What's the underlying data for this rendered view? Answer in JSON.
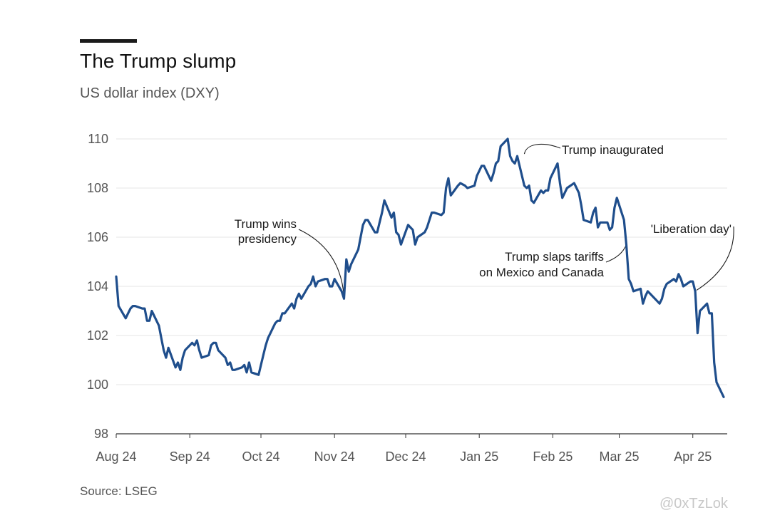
{
  "header": {
    "title": "The Trump slump",
    "subtitle": "US dollar index (DXY)"
  },
  "footer": {
    "source": "Source: LSEG",
    "watermark": "@0xTzLok"
  },
  "colors": {
    "line": "#1f4e8c",
    "grid": "#e6e6e6",
    "axis": "#333333"
  },
  "chart_data": {
    "type": "line",
    "title": "The Trump slump",
    "subtitle": "US dollar index (DXY)",
    "ylim": [
      98,
      110
    ],
    "y_ticks": [
      98,
      100,
      102,
      104,
      106,
      108,
      110
    ],
    "x_ticks": [
      {
        "label": "Aug 24",
        "date": "2024-08-01"
      },
      {
        "label": "Sep 24",
        "date": "2024-09-01"
      },
      {
        "label": "Oct 24",
        "date": "2024-10-01"
      },
      {
        "label": "Nov 24",
        "date": "2024-11-01"
      },
      {
        "label": "Dec 24",
        "date": "2024-12-01"
      },
      {
        "label": "Jan 25",
        "date": "2025-01-01"
      },
      {
        "label": "Feb 25",
        "date": "2025-02-01"
      },
      {
        "label": "Mar 25",
        "date": "2025-03-01"
      },
      {
        "label": "Apr 25",
        "date": "2025-04-01"
      }
    ],
    "grid": true,
    "series": [
      {
        "values": [
          [
            "2024-08-01",
            104.4
          ],
          [
            "2024-08-02",
            103.2
          ],
          [
            "2024-08-05",
            102.7
          ],
          [
            "2024-08-06",
            102.9
          ],
          [
            "2024-08-07",
            103.1
          ],
          [
            "2024-08-08",
            103.2
          ],
          [
            "2024-08-09",
            103.2
          ],
          [
            "2024-08-12",
            103.1
          ],
          [
            "2024-08-13",
            103.1
          ],
          [
            "2024-08-14",
            102.6
          ],
          [
            "2024-08-15",
            102.6
          ],
          [
            "2024-08-16",
            103.0
          ],
          [
            "2024-08-19",
            102.4
          ],
          [
            "2024-08-20",
            101.9
          ],
          [
            "2024-08-21",
            101.4
          ],
          [
            "2024-08-22",
            101.1
          ],
          [
            "2024-08-23",
            101.5
          ],
          [
            "2024-08-26",
            100.7
          ],
          [
            "2024-08-27",
            100.9
          ],
          [
            "2024-08-28",
            100.6
          ],
          [
            "2024-08-29",
            101.1
          ],
          [
            "2024-08-30",
            101.4
          ],
          [
            "2024-09-02",
            101.7
          ],
          [
            "2024-09-03",
            101.6
          ],
          [
            "2024-09-04",
            101.8
          ],
          [
            "2024-09-05",
            101.4
          ],
          [
            "2024-09-06",
            101.1
          ],
          [
            "2024-09-09",
            101.2
          ],
          [
            "2024-09-10",
            101.6
          ],
          [
            "2024-09-11",
            101.7
          ],
          [
            "2024-09-12",
            101.7
          ],
          [
            "2024-09-13",
            101.4
          ],
          [
            "2024-09-16",
            101.1
          ],
          [
            "2024-09-17",
            100.8
          ],
          [
            "2024-09-18",
            100.9
          ],
          [
            "2024-09-19",
            100.6
          ],
          [
            "2024-09-20",
            100.6
          ],
          [
            "2024-09-23",
            100.7
          ],
          [
            "2024-09-24",
            100.8
          ],
          [
            "2024-09-25",
            100.5
          ],
          [
            "2024-09-26",
            100.9
          ],
          [
            "2024-09-27",
            100.5
          ],
          [
            "2024-09-30",
            100.4
          ],
          [
            "2024-10-01",
            100.8
          ],
          [
            "2024-10-02",
            101.2
          ],
          [
            "2024-10-03",
            101.6
          ],
          [
            "2024-10-04",
            101.9
          ],
          [
            "2024-10-07",
            102.5
          ],
          [
            "2024-10-08",
            102.6
          ],
          [
            "2024-10-09",
            102.6
          ],
          [
            "2024-10-10",
            102.9
          ],
          [
            "2024-10-11",
            102.9
          ],
          [
            "2024-10-14",
            103.3
          ],
          [
            "2024-10-15",
            103.1
          ],
          [
            "2024-10-16",
            103.5
          ],
          [
            "2024-10-17",
            103.7
          ],
          [
            "2024-10-18",
            103.5
          ],
          [
            "2024-10-21",
            104.0
          ],
          [
            "2024-10-22",
            104.1
          ],
          [
            "2024-10-23",
            104.4
          ],
          [
            "2024-10-24",
            104.0
          ],
          [
            "2024-10-25",
            104.2
          ],
          [
            "2024-10-28",
            104.3
          ],
          [
            "2024-10-29",
            104.3
          ],
          [
            "2024-10-30",
            104.0
          ],
          [
            "2024-10-31",
            104.0
          ],
          [
            "2024-11-01",
            104.3
          ],
          [
            "2024-11-04",
            103.8
          ],
          [
            "2024-11-05",
            103.5
          ],
          [
            "2024-11-06",
            105.1
          ],
          [
            "2024-11-07",
            104.6
          ],
          [
            "2024-11-08",
            104.9
          ],
          [
            "2024-11-11",
            105.5
          ],
          [
            "2024-11-12",
            106.0
          ],
          [
            "2024-11-13",
            106.5
          ],
          [
            "2024-11-14",
            106.7
          ],
          [
            "2024-11-15",
            106.7
          ],
          [
            "2024-11-18",
            106.2
          ],
          [
            "2024-11-19",
            106.2
          ],
          [
            "2024-11-20",
            106.6
          ],
          [
            "2024-11-21",
            107.0
          ],
          [
            "2024-11-22",
            107.5
          ],
          [
            "2024-11-25",
            106.8
          ],
          [
            "2024-11-26",
            107.0
          ],
          [
            "2024-11-27",
            106.2
          ],
          [
            "2024-11-28",
            106.1
          ],
          [
            "2024-11-29",
            105.7
          ],
          [
            "2024-12-02",
            106.5
          ],
          [
            "2024-12-03",
            106.4
          ],
          [
            "2024-12-04",
            106.3
          ],
          [
            "2024-12-05",
            105.7
          ],
          [
            "2024-12-06",
            106.0
          ],
          [
            "2024-12-09",
            106.2
          ],
          [
            "2024-12-10",
            106.4
          ],
          [
            "2024-12-11",
            106.7
          ],
          [
            "2024-12-12",
            107.0
          ],
          [
            "2024-12-13",
            107.0
          ],
          [
            "2024-12-16",
            106.9
          ],
          [
            "2024-12-17",
            107.0
          ],
          [
            "2024-12-18",
            108.0
          ],
          [
            "2024-12-19",
            108.4
          ],
          [
            "2024-12-20",
            107.7
          ],
          [
            "2024-12-23",
            108.1
          ],
          [
            "2024-12-24",
            108.2
          ],
          [
            "2024-12-26",
            108.1
          ],
          [
            "2024-12-27",
            108.0
          ],
          [
            "2024-12-30",
            108.1
          ],
          [
            "2024-12-31",
            108.5
          ],
          [
            "2025-01-02",
            108.9
          ],
          [
            "2025-01-03",
            108.9
          ],
          [
            "2025-01-06",
            108.3
          ],
          [
            "2025-01-07",
            108.6
          ],
          [
            "2025-01-08",
            109.0
          ],
          [
            "2025-01-09",
            109.1
          ],
          [
            "2025-01-10",
            109.7
          ],
          [
            "2025-01-13",
            110.0
          ],
          [
            "2025-01-14",
            109.3
          ],
          [
            "2025-01-15",
            109.1
          ],
          [
            "2025-01-16",
            109.0
          ],
          [
            "2025-01-17",
            109.3
          ],
          [
            "2025-01-20",
            108.1
          ],
          [
            "2025-01-21",
            108.0
          ],
          [
            "2025-01-22",
            108.1
          ],
          [
            "2025-01-23",
            107.5
          ],
          [
            "2025-01-24",
            107.4
          ],
          [
            "2025-01-27",
            107.9
          ],
          [
            "2025-01-28",
            107.8
          ],
          [
            "2025-01-29",
            107.9
          ],
          [
            "2025-01-30",
            107.9
          ],
          [
            "2025-01-31",
            108.4
          ],
          [
            "2025-02-03",
            109.0
          ],
          [
            "2025-02-04",
            108.2
          ],
          [
            "2025-02-05",
            107.6
          ],
          [
            "2025-02-06",
            107.8
          ],
          [
            "2025-02-07",
            108.0
          ],
          [
            "2025-02-10",
            108.2
          ],
          [
            "2025-02-11",
            108.0
          ],
          [
            "2025-02-12",
            107.8
          ],
          [
            "2025-02-13",
            107.3
          ],
          [
            "2025-02-14",
            106.7
          ],
          [
            "2025-02-17",
            106.6
          ],
          [
            "2025-02-18",
            107.0
          ],
          [
            "2025-02-19",
            107.2
          ],
          [
            "2025-02-20",
            106.4
          ],
          [
            "2025-02-21",
            106.6
          ],
          [
            "2025-02-24",
            106.6
          ],
          [
            "2025-02-25",
            106.3
          ],
          [
            "2025-02-26",
            106.4
          ],
          [
            "2025-02-27",
            107.2
          ],
          [
            "2025-02-28",
            107.6
          ],
          [
            "2025-03-03",
            106.7
          ],
          [
            "2025-03-04",
            105.7
          ],
          [
            "2025-03-05",
            104.3
          ],
          [
            "2025-03-06",
            104.1
          ],
          [
            "2025-03-07",
            103.8
          ],
          [
            "2025-03-10",
            103.9
          ],
          [
            "2025-03-11",
            103.3
          ],
          [
            "2025-03-12",
            103.6
          ],
          [
            "2025-03-13",
            103.8
          ],
          [
            "2025-03-14",
            103.7
          ],
          [
            "2025-03-17",
            103.4
          ],
          [
            "2025-03-18",
            103.3
          ],
          [
            "2025-03-19",
            103.5
          ],
          [
            "2025-03-20",
            103.9
          ],
          [
            "2025-03-21",
            104.1
          ],
          [
            "2025-03-24",
            104.3
          ],
          [
            "2025-03-25",
            104.2
          ],
          [
            "2025-03-26",
            104.5
          ],
          [
            "2025-03-27",
            104.3
          ],
          [
            "2025-03-28",
            104.0
          ],
          [
            "2025-03-31",
            104.2
          ],
          [
            "2025-04-01",
            104.2
          ],
          [
            "2025-04-02",
            103.8
          ],
          [
            "2025-04-03",
            102.1
          ],
          [
            "2025-04-04",
            103.0
          ],
          [
            "2025-04-07",
            103.3
          ],
          [
            "2025-04-08",
            102.9
          ],
          [
            "2025-04-09",
            102.9
          ],
          [
            "2025-04-10",
            100.9
          ],
          [
            "2025-04-11",
            100.1
          ],
          [
            "2025-04-14",
            99.5
          ]
        ]
      }
    ],
    "annotations": [
      {
        "lines": [
          "Trump wins",
          "presidency"
        ],
        "date": "2024-11-05",
        "value": 103.5
      },
      {
        "lines": [
          "Trump inaugurated"
        ],
        "date": "2025-01-20",
        "value": 109.3
      },
      {
        "lines": [
          "Trump slaps tariffs",
          "on Mexico and Canada"
        ],
        "date": "2025-03-04",
        "value": 105.7
      },
      {
        "lines": [
          "'Liberation day'"
        ],
        "date": "2025-04-02",
        "value": 103.9
      }
    ]
  }
}
